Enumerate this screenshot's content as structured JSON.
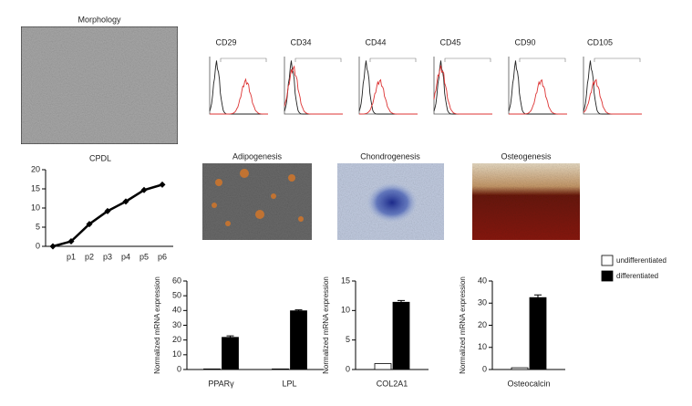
{
  "figure": {
    "morphology": "Morphology",
    "flow_markers": [
      "CD29",
      "CD34",
      "CD44",
      "CD45",
      "CD90",
      "CD105"
    ],
    "differentiation": [
      "Adipogenesis",
      "Chondrogenesis",
      "Osteogenesis"
    ]
  },
  "chart_data": [
    {
      "type": "line",
      "title": "CPDL",
      "categories": [
        null,
        "p1",
        "p2",
        "p3",
        "p4",
        "p5",
        "p6"
      ],
      "values": [
        0,
        1.3,
        5.8,
        9.2,
        11.7,
        14.7,
        16.1
      ],
      "color": "#000000",
      "ylim": [
        0,
        20
      ],
      "yticks": [
        0,
        5,
        10,
        15,
        20
      ]
    },
    {
      "type": "bar",
      "y_label": "Normalized mRNA expression",
      "categories": [
        "PPARγ",
        "LPL"
      ],
      "series": [
        {
          "name": "undifferentiated",
          "color": "#ffffff",
          "values": [
            0.4,
            0.4
          ]
        },
        {
          "name": "differentiated",
          "color": "#000000",
          "values": [
            21.8,
            39.8
          ],
          "errors": [
            1,
            0.6
          ]
        }
      ],
      "ylim": [
        0,
        60
      ],
      "yticks": [
        0,
        10,
        20,
        30,
        40,
        50,
        60
      ]
    },
    {
      "type": "bar",
      "y_label": "Normalized mRNA expression",
      "categories": [
        "COL2A1"
      ],
      "series": [
        {
          "name": "undifferentiated",
          "color": "#ffffff",
          "values": [
            1.0
          ]
        },
        {
          "name": "differentiated",
          "color": "#000000",
          "values": [
            11.4
          ],
          "errors": [
            0.3
          ]
        }
      ],
      "ylim": [
        0,
        15
      ],
      "yticks": [
        0,
        5,
        10,
        15
      ]
    },
    {
      "type": "bar",
      "y_label": "Normalized mRNA expression",
      "categories": [
        "Osteocalcin"
      ],
      "series": [
        {
          "name": "undifferentiated",
          "color": "#ffffff",
          "values": [
            0.8
          ]
        },
        {
          "name": "differentiated",
          "color": "#000000",
          "values": [
            32.5
          ],
          "errors": [
            1.2
          ]
        }
      ],
      "ylim": [
        0,
        40
      ],
      "yticks": [
        0,
        10,
        20,
        30,
        40
      ],
      "legend": "top-right"
    }
  ]
}
